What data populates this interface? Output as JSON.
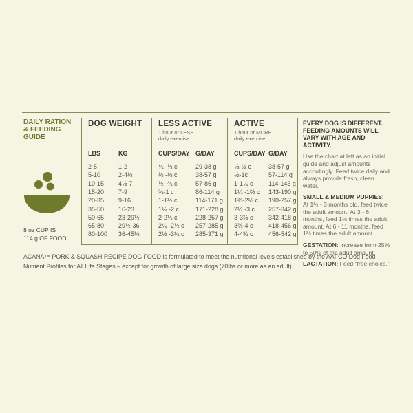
{
  "title": [
    "DAILY RATION",
    "& FEEDING",
    "GUIDE"
  ],
  "cup_note": [
    "8 oz CUP IS",
    "114 g OF FOOD"
  ],
  "table": {
    "groups": [
      {
        "title": "DOG WEIGHT"
      },
      {
        "title": "LESS ACTIVE",
        "subtitle": [
          "1 hour or LESS",
          "daily exercise"
        ]
      },
      {
        "title": "ACTIVE",
        "subtitle": [
          "1 hour or MORE",
          "daily exercise"
        ]
      }
    ],
    "columns": [
      "LBS",
      "KG",
      "CUPS/DAY",
      "G/DAY",
      "CUPS/DAY",
      "G/DAY"
    ],
    "rows": [
      [
        "2-5",
        "1-2",
        "¼ -⅓ c",
        "29-38 g",
        "⅓-½ c",
        "38-57 g"
      ],
      [
        "5-10",
        "2-4½",
        "⅓ -½ c",
        "38-57 g",
        "½-1c",
        "57-114 g"
      ],
      [
        "10-15",
        "4½-7",
        "½ -¾ c",
        "57-86 g",
        "1-1¼ c",
        "114-143 g"
      ],
      [
        "15-20",
        "7-9",
        "¾-1 c",
        "86-114 g",
        "1¼ -1⅔ c",
        "143-190 g"
      ],
      [
        "20-35",
        "9-16",
        "1-1½ c",
        "114-171 g",
        "1⅔-2¼ c",
        "190-257 g"
      ],
      [
        "35-50",
        "16-23",
        "1½ -2 c",
        "171-228 g",
        "2¼ -3 c",
        "257-342 g"
      ],
      [
        "50-65",
        "23-29½",
        "2-2¼ c",
        "228-257 g",
        "3-3⅔ c",
        "342-418 g"
      ],
      [
        "65-80",
        "29½-36",
        "2¼ -2½ c",
        "257-285 g",
        "3⅔-4 c",
        "418-456 g"
      ],
      [
        "80-100",
        "36-45½",
        "2½ -3¼ c",
        "285-371 g",
        "4-4¾ c",
        "456-542 g"
      ]
    ]
  },
  "notes": {
    "heading": "EVERY DOG IS DIFFERENT. FEEDING AMOUNTS WILL VARY WITH AGE AND ACTIVITY.",
    "intro": "Use the chart at left as an initial guide and adjust amounts accordingly. Feed twice daily and always provide fresh, clean water.",
    "puppies_heading": "SMALL & MEDIUM PUPPIES:",
    "puppies": "At 1½ - 3 months old, feed twice the adult amount. At 3 - 6 months, feed 1½ times the adult amount. At 6 - 11 months, feed 1¼ times the adult amount.",
    "gestation_label": "GESTATION:",
    "gestation": "Increase from 25% to 50% of the adult amount.",
    "lactation_label": "LACTATION:",
    "lactation": "Feed “free choice.”"
  },
  "footer": "ACANA™ PORK & SQUASH RECIPE DOG FOOD is formulated to meet the nutritional levels established by the AAFCO Dog Food Nutrient Profiles for All Life Stages – except for growth of large size dogs (70lbs or more as an adult)."
}
